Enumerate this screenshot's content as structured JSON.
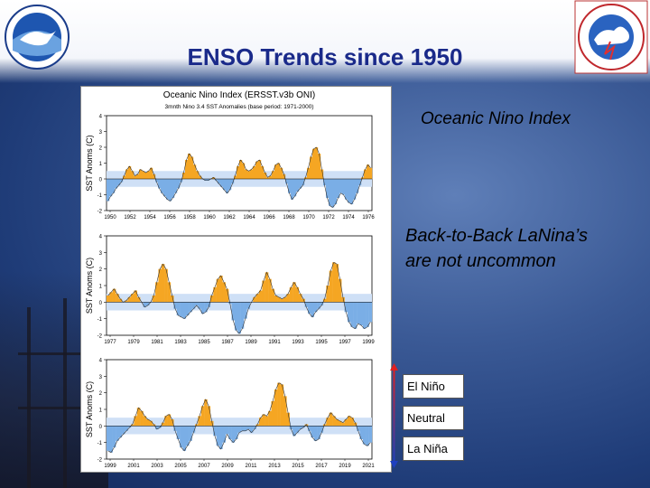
{
  "slide": {
    "title": "ENSO Trends since 1950",
    "oni_label": "Oceanic Nino Index",
    "note": "Back-to-Back LaNina’s are not uncommon",
    "legend": [
      "El Niño",
      "Neutral",
      "La Niña"
    ],
    "logos": {
      "left": "NOAA",
      "right": "NATIONAL WEATHER SERVICE"
    }
  },
  "colors": {
    "warm": "#f5a623",
    "cool": "#7aaee6",
    "title": "#1a2a8a"
  },
  "chart_data": {
    "type": "area",
    "title": "Oceanic Nino Index (ERSST.v3b ONI)",
    "subtitle": "3mnth Nino 3.4 SST Anomalies (base period: 1971-2000)",
    "ylabel": "SST Anoms (C)",
    "ylim": [
      -2,
      4
    ],
    "yticks": [
      -2,
      -1,
      0,
      1,
      2,
      3,
      4
    ],
    "threshold_band": [
      -0.5,
      0.5
    ],
    "panels": [
      {
        "xlabels": [
          "1950",
          "1952",
          "1954",
          "1956",
          "1958",
          "1960",
          "1962",
          "1964",
          "1966",
          "1968",
          "1970",
          "1972",
          "1974",
          "1976"
        ],
        "series": [
          -1.4,
          -1.1,
          -0.9,
          -0.6,
          -0.4,
          -0.2,
          0.2,
          0.6,
          0.8,
          0.5,
          0.2,
          0.3,
          0.6,
          0.5,
          0.4,
          0.5,
          0.7,
          0.3,
          -0.2,
          -0.6,
          -0.9,
          -1.1,
          -1.3,
          -1.4,
          -1.2,
          -0.9,
          -0.6,
          -0.2,
          0.4,
          1.2,
          1.6,
          1.4,
          0.9,
          0.5,
          0.2,
          0.0,
          -0.1,
          -0.1,
          0.0,
          0.1,
          -0.1,
          -0.3,
          -0.5,
          -0.7,
          -0.9,
          -0.7,
          -0.3,
          0.2,
          0.8,
          1.2,
          1.0,
          0.6,
          0.5,
          0.6,
          0.8,
          1.1,
          1.2,
          0.8,
          0.4,
          0.1,
          0.2,
          0.5,
          0.9,
          1.0,
          0.7,
          0.3,
          -0.3,
          -0.9,
          -1.3,
          -1.1,
          -0.8,
          -0.6,
          -0.4,
          0.1,
          0.7,
          1.4,
          1.9,
          2.0,
          1.6,
          0.6,
          -0.4,
          -1.2,
          -1.7,
          -1.8,
          -1.6,
          -1.2,
          -0.9,
          -1.0,
          -1.3,
          -1.5,
          -1.6,
          -1.3,
          -0.9,
          -0.4,
          0.1,
          0.6,
          0.9,
          0.7
        ]
      },
      {
        "xlabels": [
          "1977",
          "1979",
          "1981",
          "1983",
          "1985",
          "1987",
          "1989",
          "1991",
          "1993",
          "1995",
          "1997",
          "1999"
        ],
        "series": [
          0.4,
          0.6,
          0.8,
          0.5,
          0.2,
          0.0,
          0.1,
          0.3,
          0.5,
          0.7,
          0.3,
          0.0,
          -0.3,
          -0.2,
          0.0,
          0.4,
          1.2,
          2.0,
          2.3,
          2.0,
          1.2,
          0.4,
          -0.4,
          -0.8,
          -0.9,
          -1.0,
          -0.8,
          -0.6,
          -0.4,
          -0.2,
          -0.4,
          -0.7,
          -0.6,
          -0.3,
          0.4,
          0.9,
          1.4,
          1.6,
          1.2,
          0.8,
          -0.1,
          -1.1,
          -1.7,
          -1.9,
          -1.6,
          -1.0,
          -0.4,
          0.0,
          0.3,
          0.5,
          0.7,
          1.3,
          1.8,
          1.4,
          0.8,
          0.4,
          0.3,
          0.2,
          0.3,
          0.5,
          0.9,
          1.2,
          0.9,
          0.5,
          0.2,
          -0.3,
          -0.7,
          -0.9,
          -0.6,
          -0.4,
          -0.2,
          0.2,
          1.0,
          1.9,
          2.4,
          2.3,
          1.4,
          0.3,
          -0.6,
          -1.2,
          -1.5,
          -1.6,
          -1.3,
          -1.4,
          -1.6,
          -1.5,
          -1.2
        ]
      },
      {
        "xlabels": [
          "1999",
          "2001",
          "2003",
          "2005",
          "2007",
          "2009",
          "2011",
          "2013",
          "2015",
          "2017",
          "2019",
          "2021"
        ],
        "series": [
          -1.5,
          -1.6,
          -1.3,
          -0.9,
          -0.7,
          -0.5,
          -0.3,
          -0.1,
          0.1,
          0.6,
          1.1,
          0.9,
          0.6,
          0.4,
          0.3,
          0.1,
          -0.2,
          -0.1,
          0.2,
          0.6,
          0.7,
          0.4,
          -0.3,
          -0.8,
          -1.3,
          -1.5,
          -1.2,
          -0.9,
          -0.4,
          0.1,
          0.6,
          1.2,
          1.6,
          1.2,
          0.3,
          -0.6,
          -1.2,
          -1.4,
          -1.0,
          -0.5,
          -0.8,
          -1.0,
          -0.8,
          -0.4,
          -0.3,
          -0.3,
          -0.2,
          -0.4,
          -0.2,
          0.1,
          0.5,
          0.7,
          0.6,
          0.9,
          1.5,
          2.2,
          2.6,
          2.5,
          1.8,
          0.8,
          -0.2,
          -0.6,
          -0.4,
          -0.2,
          -0.1,
          0.1,
          -0.3,
          -0.7,
          -0.9,
          -0.8,
          -0.4,
          0.1,
          0.5,
          0.8,
          0.6,
          0.4,
          0.3,
          0.2,
          0.4,
          0.6,
          0.5,
          0.2,
          -0.3,
          -0.8,
          -1.1,
          -1.2,
          -1.0
        ]
      }
    ]
  }
}
